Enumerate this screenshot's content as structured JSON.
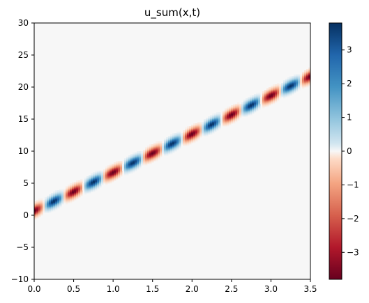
{
  "chart_data": {
    "type": "heatmap",
    "title": "u_sum(x,t)",
    "xlabel": "",
    "ylabel": "",
    "xlim": [
      0.0,
      3.5
    ],
    "ylim": [
      -10,
      30
    ],
    "x_ticks": [
      "0.0",
      "0.5",
      "1.0",
      "1.5",
      "2.0",
      "2.5",
      "3.0",
      "3.5"
    ],
    "y_ticks": [
      "−10",
      "−5",
      "0",
      "5",
      "10",
      "15",
      "20",
      "25",
      "30"
    ],
    "grid": false,
    "colormap": "RdBu",
    "colorbar": {
      "range": [
        -3.8,
        3.8
      ],
      "ticks": [
        "−3",
        "−2",
        "−1",
        "0",
        "1",
        "2",
        "3"
      ]
    },
    "field": {
      "description_of_content": "travelling oscillating wave packet",
      "band_center_start": 0.7,
      "band_slope_per_unit_x": 6.0,
      "amplitude": 3.8,
      "wavelength_along_x": 0.5,
      "band_halfwidth": 0.5
    },
    "colors": {
      "dark_red": "#67001f",
      "red": "#d6604d",
      "white": "#f7f7f7",
      "blue": "#4393c3",
      "dark_blue": "#053061"
    }
  }
}
